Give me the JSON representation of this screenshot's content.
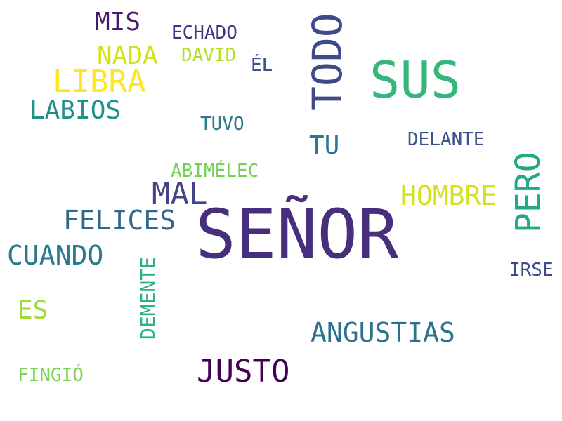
{
  "words": {
    "senor": {
      "text": "SEÑOR",
      "color": "#472f7d"
    },
    "sus": {
      "text": "SUS",
      "color": "#35b779"
    },
    "todo": {
      "text": "TODO",
      "color": "#3e4a89"
    },
    "libra": {
      "text": "LIBRA",
      "color": "#fde725"
    },
    "pero": {
      "text": "PERO",
      "color": "#22a884"
    },
    "mal": {
      "text": "MAL",
      "color": "#414487"
    },
    "justo": {
      "text": "JUSTO",
      "color": "#440154"
    },
    "hombre": {
      "text": "HOMBRE",
      "color": "#d2e21b"
    },
    "felices": {
      "text": "FELICES",
      "color": "#31688e"
    },
    "cuando": {
      "text": "CUANDO",
      "color": "#2a788e"
    },
    "angustias": {
      "text": "ANGUSTIAS",
      "color": "#2c728e"
    },
    "nada": {
      "text": "NADA",
      "color": "#d5e21a"
    },
    "labios": {
      "text": "LABIOS",
      "color": "#21918c"
    },
    "mis": {
      "text": "MIS",
      "color": "#481a6c"
    },
    "tu": {
      "text": "TU",
      "color": "#2a788e"
    },
    "es": {
      "text": "ES",
      "color": "#a0da39"
    },
    "demente": {
      "text": "DEMENTE",
      "color": "#2db27d"
    },
    "echado": {
      "text": "ECHADO",
      "color": "#46327e"
    },
    "abimelec": {
      "text": "ABIMÉLEC",
      "color": "#75d054"
    },
    "delante": {
      "text": "DELANTE",
      "color": "#3b528b"
    },
    "david": {
      "text": "DAVID",
      "color": "#b5de2b"
    },
    "tuvo": {
      "text": "TUVO",
      "color": "#287c8e"
    },
    "fingio": {
      "text": "FINGIÓ",
      "color": "#7ad151"
    },
    "irse": {
      "text": "IRSE",
      "color": "#3e4c8a"
    },
    "el": {
      "text": "ÉL",
      "color": "#3b528b"
    }
  }
}
